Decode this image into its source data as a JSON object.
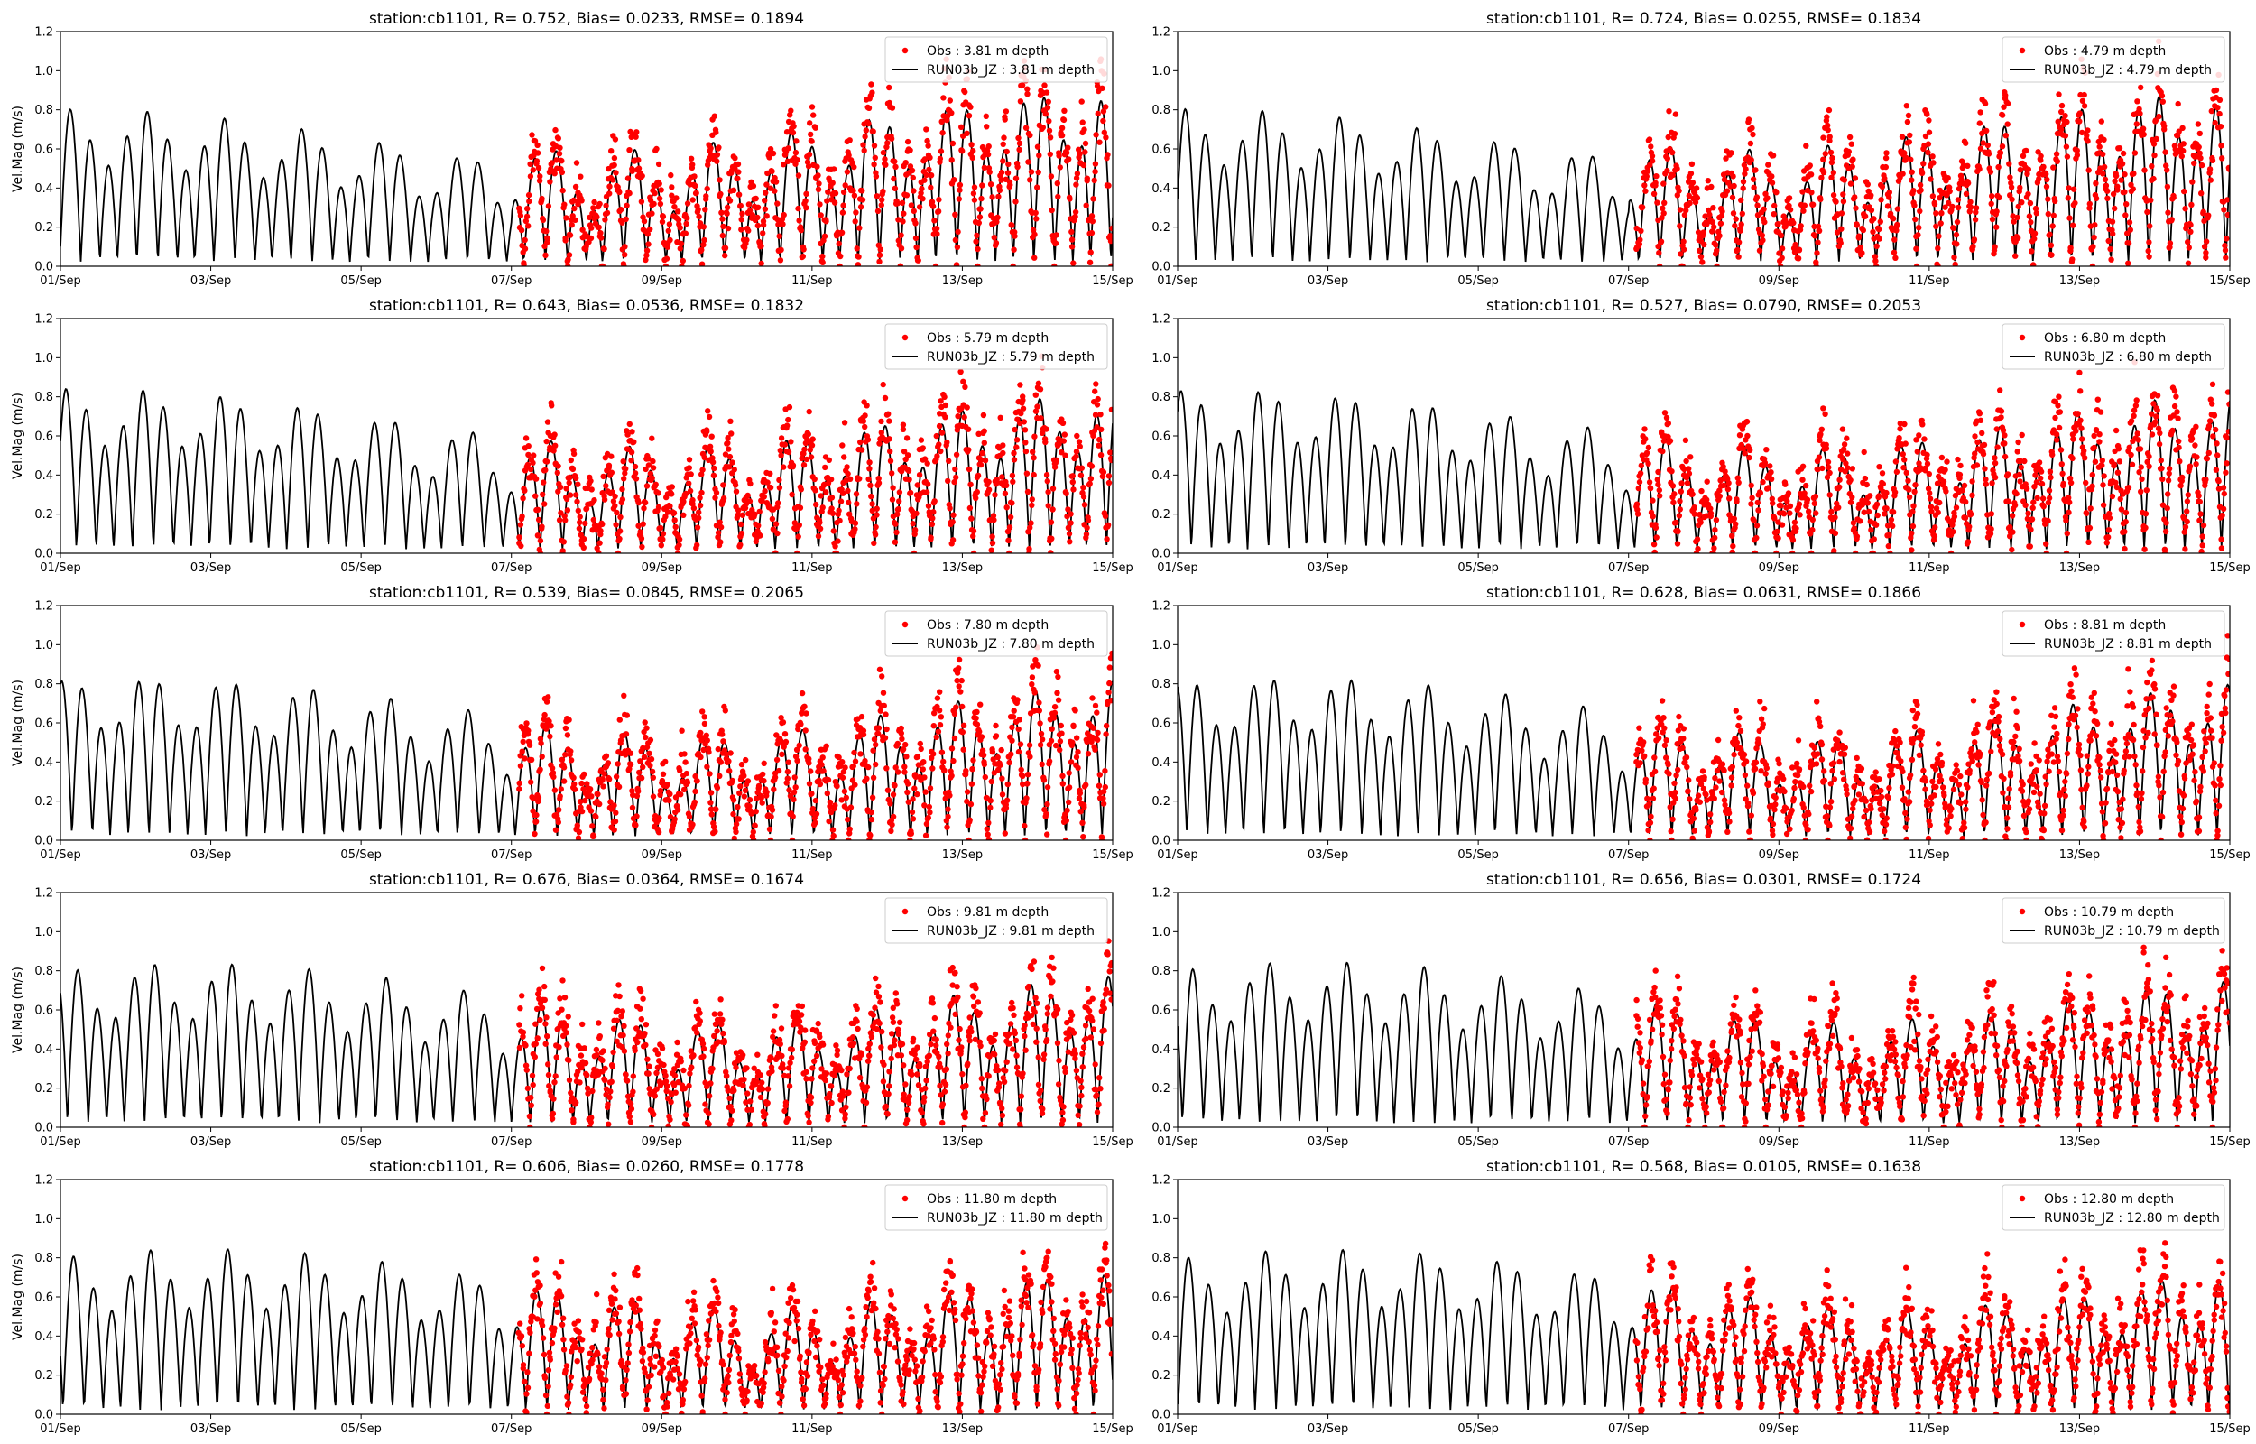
{
  "colors": {
    "obs": "#ff0000",
    "model": "#000000",
    "legend_border": "#cccccc"
  },
  "chart_data": [
    {
      "type": "scatter+line",
      "title": "station:cb1101, R= 0.752, Bias= 0.0233, RMSE= 0.1894",
      "ylabel": "Vel.Mag (m/s)",
      "xlim": [
        "01/Sep",
        "15/Sep"
      ],
      "ylim": [
        0,
        1.2
      ],
      "xticks": [
        "01/Sep",
        "03/Sep",
        "05/Sep",
        "07/Sep",
        "09/Sep",
        "11/Sep",
        "13/Sep",
        "15/Sep"
      ],
      "yticks": [
        "0.0",
        "0.2",
        "0.4",
        "0.6",
        "0.8",
        "1.0",
        "1.2"
      ],
      "obs_start_day": 6.1,
      "legend": {
        "placement": "top-right",
        "entries": [
          "Obs : 3.81 m depth",
          "RUN03b_JZ : 3.81 m depth"
        ]
      },
      "series": [
        {
          "name": "Obs : 3.81 m depth",
          "style": "points"
        },
        {
          "name": "RUN03b_JZ : 3.81 m depth",
          "style": "line"
        }
      ]
    },
    {
      "type": "scatter+line",
      "title": "station:cb1101, R= 0.724, Bias= 0.0255, RMSE= 0.1834",
      "ylabel": "",
      "xlim": [
        "01/Sep",
        "15/Sep"
      ],
      "ylim": [
        0,
        1.2
      ],
      "xticks": [
        "01/Sep",
        "03/Sep",
        "05/Sep",
        "07/Sep",
        "09/Sep",
        "11/Sep",
        "13/Sep",
        "15/Sep"
      ],
      "yticks": [
        "0.0",
        "0.2",
        "0.4",
        "0.6",
        "0.8",
        "1.0",
        "1.2"
      ],
      "obs_start_day": 6.1,
      "legend": {
        "placement": "top-right",
        "entries": [
          "Obs : 4.79 m depth",
          "RUN03b_JZ : 4.79 m depth"
        ]
      },
      "series": [
        {
          "name": "Obs : 4.79 m depth",
          "style": "points"
        },
        {
          "name": "RUN03b_JZ : 4.79 m depth",
          "style": "line"
        }
      ]
    },
    {
      "type": "scatter+line",
      "title": "station:cb1101, R= 0.643, Bias= 0.0536, RMSE= 0.1832",
      "ylabel": "Vel.Mag (m/s)",
      "xlim": [
        "01/Sep",
        "15/Sep"
      ],
      "ylim": [
        0,
        1.2
      ],
      "xticks": [
        "01/Sep",
        "03/Sep",
        "05/Sep",
        "07/Sep",
        "09/Sep",
        "11/Sep",
        "13/Sep",
        "15/Sep"
      ],
      "yticks": [
        "0.0",
        "0.2",
        "0.4",
        "0.6",
        "0.8",
        "1.0",
        "1.2"
      ],
      "obs_start_day": 6.1,
      "legend": {
        "placement": "top-right",
        "entries": [
          "Obs : 5.79 m depth",
          "RUN03b_JZ : 5.79 m depth"
        ]
      },
      "series": [
        {
          "name": "Obs : 5.79 m depth",
          "style": "points"
        },
        {
          "name": "RUN03b_JZ : 5.79 m depth",
          "style": "line"
        }
      ]
    },
    {
      "type": "scatter+line",
      "title": "station:cb1101, R= 0.527, Bias= 0.0790, RMSE= 0.2053",
      "ylabel": "",
      "xlim": [
        "01/Sep",
        "15/Sep"
      ],
      "ylim": [
        0,
        1.2
      ],
      "xticks": [
        "01/Sep",
        "03/Sep",
        "05/Sep",
        "07/Sep",
        "09/Sep",
        "11/Sep",
        "13/Sep",
        "15/Sep"
      ],
      "yticks": [
        "0.0",
        "0.2",
        "0.4",
        "0.6",
        "0.8",
        "1.0",
        "1.2"
      ],
      "obs_start_day": 6.1,
      "legend": {
        "placement": "top-right",
        "entries": [
          "Obs : 6.80 m depth",
          "RUN03b_JZ : 6.80 m depth"
        ]
      },
      "series": [
        {
          "name": "Obs : 6.80 m depth",
          "style": "points"
        },
        {
          "name": "RUN03b_JZ : 6.80 m depth",
          "style": "line"
        }
      ]
    },
    {
      "type": "scatter+line",
      "title": "station:cb1101, R= 0.539, Bias= 0.0845, RMSE= 0.2065",
      "ylabel": "Vel.Mag (m/s)",
      "xlim": [
        "01/Sep",
        "15/Sep"
      ],
      "ylim": [
        0,
        1.2
      ],
      "xticks": [
        "01/Sep",
        "03/Sep",
        "05/Sep",
        "07/Sep",
        "09/Sep",
        "11/Sep",
        "13/Sep",
        "15/Sep"
      ],
      "yticks": [
        "0.0",
        "0.2",
        "0.4",
        "0.6",
        "0.8",
        "1.0",
        "1.2"
      ],
      "obs_start_day": 6.1,
      "legend": {
        "placement": "top-right",
        "entries": [
          "Obs : 7.80 m depth",
          "RUN03b_JZ : 7.80 m depth"
        ]
      },
      "series": [
        {
          "name": "Obs : 7.80 m depth",
          "style": "points"
        },
        {
          "name": "RUN03b_JZ : 7.80 m depth",
          "style": "line"
        }
      ]
    },
    {
      "type": "scatter+line",
      "title": "station:cb1101, R= 0.628, Bias= 0.0631, RMSE= 0.1866",
      "ylabel": "",
      "xlim": [
        "01/Sep",
        "15/Sep"
      ],
      "ylim": [
        0,
        1.2
      ],
      "xticks": [
        "01/Sep",
        "03/Sep",
        "05/Sep",
        "07/Sep",
        "09/Sep",
        "11/Sep",
        "13/Sep",
        "15/Sep"
      ],
      "yticks": [
        "0.0",
        "0.2",
        "0.4",
        "0.6",
        "0.8",
        "1.0",
        "1.2"
      ],
      "obs_start_day": 6.1,
      "legend": {
        "placement": "top-right",
        "entries": [
          "Obs : 8.81 m depth",
          "RUN03b_JZ : 8.81 m depth"
        ]
      },
      "series": [
        {
          "name": "Obs : 8.81 m depth",
          "style": "points"
        },
        {
          "name": "RUN03b_JZ : 8.81 m depth",
          "style": "line"
        }
      ]
    },
    {
      "type": "scatter+line",
      "title": "station:cb1101, R= 0.676, Bias= 0.0364, RMSE= 0.1674",
      "ylabel": "Vel.Mag (m/s)",
      "xlim": [
        "01/Sep",
        "15/Sep"
      ],
      "ylim": [
        0,
        1.2
      ],
      "xticks": [
        "01/Sep",
        "03/Sep",
        "05/Sep",
        "07/Sep",
        "09/Sep",
        "11/Sep",
        "13/Sep",
        "15/Sep"
      ],
      "yticks": [
        "0.0",
        "0.2",
        "0.4",
        "0.6",
        "0.8",
        "1.0",
        "1.2"
      ],
      "obs_start_day": 6.1,
      "legend": {
        "placement": "top-right",
        "entries": [
          "Obs : 9.81 m depth",
          "RUN03b_JZ : 9.81 m depth"
        ]
      },
      "series": [
        {
          "name": "Obs : 9.81 m depth",
          "style": "points"
        },
        {
          "name": "RUN03b_JZ : 9.81 m depth",
          "style": "line"
        }
      ]
    },
    {
      "type": "scatter+line",
      "title": "station:cb1101, R= 0.656, Bias= 0.0301, RMSE= 0.1724",
      "ylabel": "",
      "xlim": [
        "01/Sep",
        "15/Sep"
      ],
      "ylim": [
        0,
        1.2
      ],
      "xticks": [
        "01/Sep",
        "03/Sep",
        "05/Sep",
        "07/Sep",
        "09/Sep",
        "11/Sep",
        "13/Sep",
        "15/Sep"
      ],
      "yticks": [
        "0.0",
        "0.2",
        "0.4",
        "0.6",
        "0.8",
        "1.0",
        "1.2"
      ],
      "obs_start_day": 6.1,
      "legend": {
        "placement": "top-right",
        "entries": [
          "Obs : 10.79 m depth",
          "RUN03b_JZ : 10.79 m depth"
        ]
      },
      "series": [
        {
          "name": "Obs : 10.79 m depth",
          "style": "points"
        },
        {
          "name": "RUN03b_JZ : 10.79 m depth",
          "style": "line"
        }
      ]
    },
    {
      "type": "scatter+line",
      "title": "station:cb1101, R= 0.606, Bias= 0.0260, RMSE= 0.1778",
      "ylabel": "Vel.Mag (m/s)",
      "xlim": [
        "01/Sep",
        "15/Sep"
      ],
      "ylim": [
        0,
        1.2
      ],
      "xticks": [
        "01/Sep",
        "03/Sep",
        "05/Sep",
        "07/Sep",
        "09/Sep",
        "11/Sep",
        "13/Sep",
        "15/Sep"
      ],
      "yticks": [
        "0.0",
        "0.2",
        "0.4",
        "0.6",
        "0.8",
        "1.0",
        "1.2"
      ],
      "obs_start_day": 6.1,
      "legend": {
        "placement": "top-right",
        "entries": [
          "Obs : 11.80 m depth",
          "RUN03b_JZ : 11.80 m depth"
        ]
      },
      "series": [
        {
          "name": "Obs : 11.80 m depth",
          "style": "points"
        },
        {
          "name": "RUN03b_JZ : 11.80 m depth",
          "style": "line"
        }
      ]
    },
    {
      "type": "scatter+line",
      "title": "station:cb1101, R= 0.568, Bias= 0.0105, RMSE= 0.1638",
      "ylabel": "",
      "xlim": [
        "01/Sep",
        "15/Sep"
      ],
      "ylim": [
        0,
        1.2
      ],
      "xticks": [
        "01/Sep",
        "03/Sep",
        "05/Sep",
        "07/Sep",
        "09/Sep",
        "11/Sep",
        "13/Sep",
        "15/Sep"
      ],
      "yticks": [
        "0.0",
        "0.2",
        "0.4",
        "0.6",
        "0.8",
        "1.0",
        "1.2"
      ],
      "obs_start_day": 6.1,
      "legend": {
        "placement": "top-right",
        "entries": [
          "Obs : 12.80 m depth",
          "RUN03b_JZ : 12.80 m depth"
        ]
      },
      "series": [
        {
          "name": "Obs : 12.80 m depth",
          "style": "points"
        },
        {
          "name": "RUN03b_JZ : 12.80 m depth",
          "style": "line"
        }
      ]
    }
  ]
}
